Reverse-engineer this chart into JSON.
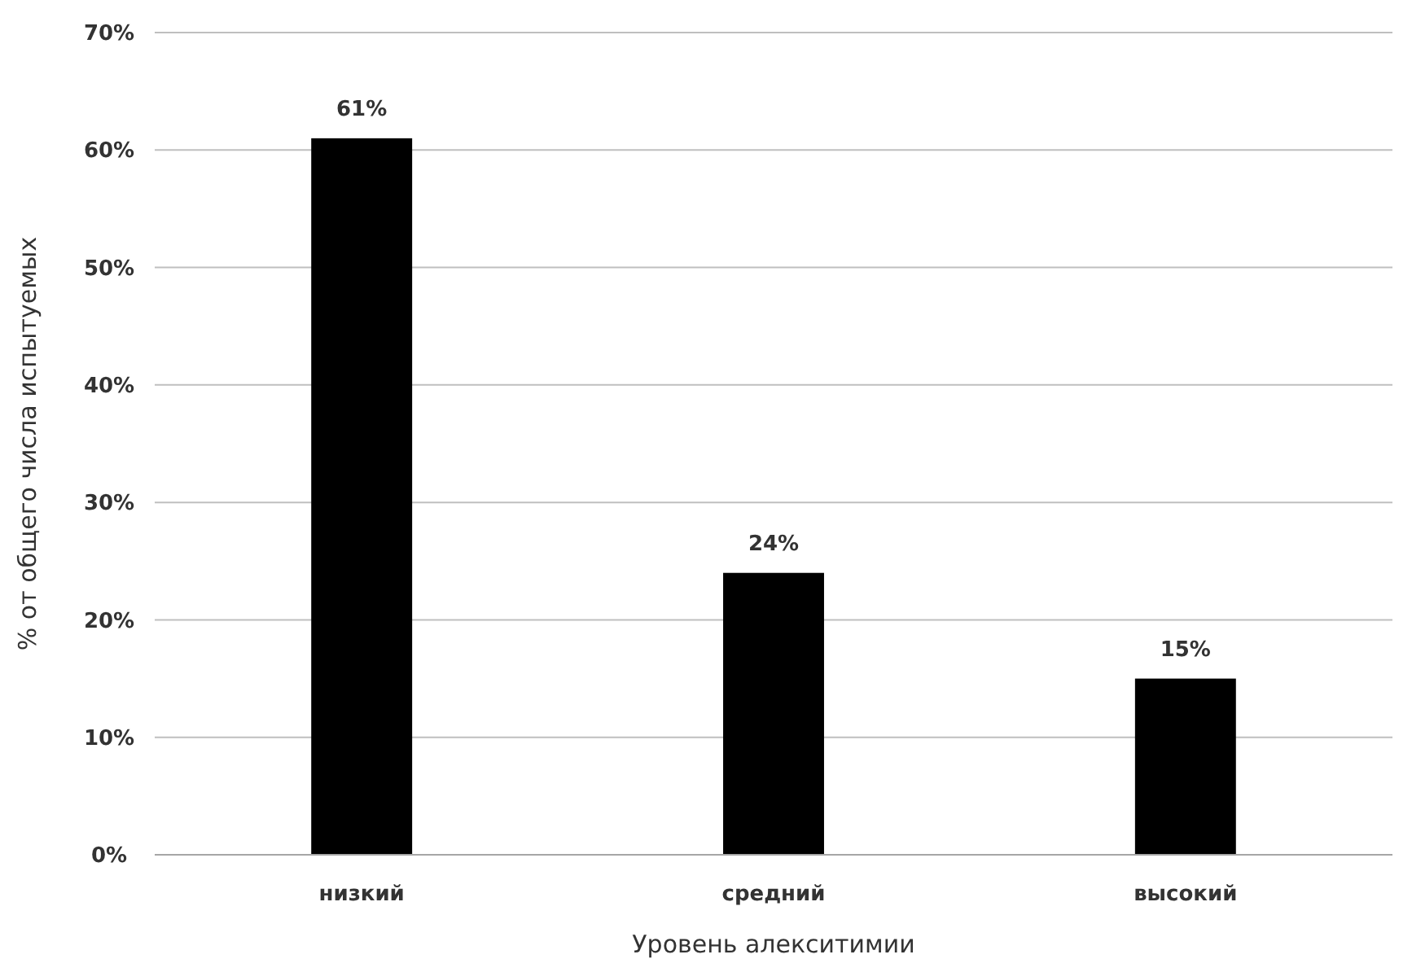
{
  "chart_data": {
    "type": "bar",
    "xlabel": "Уровень алекситимии",
    "ylabel": "% от общего числа испытуемых",
    "categories": [
      "низкий",
      "средний",
      "высокий"
    ],
    "values": [
      61,
      24,
      15
    ],
    "color": "#000000",
    "value_labels": [
      "61%",
      "24%",
      "15%"
    ],
    "ylim": [
      0,
      70
    ],
    "yticks": [
      {
        "value": 0,
        "label": "0%"
      },
      {
        "value": 10,
        "label": "10%"
      },
      {
        "value": 20,
        "label": "20%"
      },
      {
        "value": 30,
        "label": "30%"
      },
      {
        "value": 40,
        "label": "40%"
      },
      {
        "value": 50,
        "label": "50%"
      },
      {
        "value": 60,
        "label": "60%"
      },
      {
        "value": 70,
        "label": "70%"
      }
    ],
    "grid": "y"
  }
}
